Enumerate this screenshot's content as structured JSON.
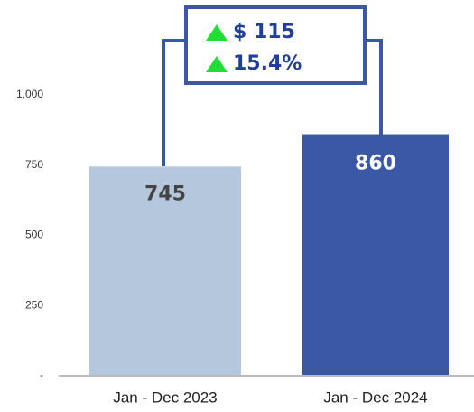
{
  "chart_data": {
    "type": "bar",
    "categories": [
      "Jan - Dec 2023",
      "Jan - Dec 2024"
    ],
    "values": [
      745,
      860
    ],
    "colors": [
      "#b4c7dc",
      "#3a58a6"
    ],
    "label_colors": [
      "#444444",
      "#ffffff"
    ],
    "ylim": [
      0,
      1000
    ],
    "yticks": [
      {
        "value": 0,
        "label": "-"
      },
      250,
      500,
      750,
      {
        "value": 1000,
        "label": "1,000"
      }
    ],
    "annotations": [
      "$ 115",
      "15.4%"
    ]
  }
}
